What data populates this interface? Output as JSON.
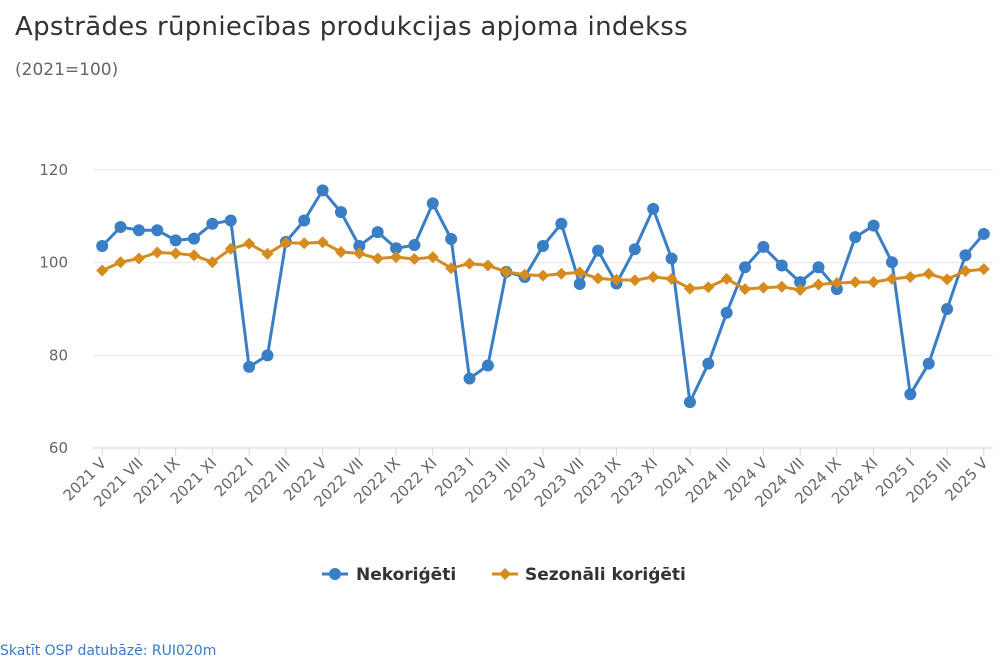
{
  "chart_data": {
    "type": "line",
    "title": "Apstrādes rūpniecības produkcijas apjoma indekss",
    "subtitle": "(2021=100)",
    "x": [
      "2021 V",
      "2021 VI",
      "2021 VII",
      "2021 VIII",
      "2021 IX",
      "2021 X",
      "2021 XI",
      "2021 XII",
      "2022 I",
      "2022 II",
      "2022 III",
      "2022 IV",
      "2022 V",
      "2022 VI",
      "2022 VII",
      "2022 VIII",
      "2022 IX",
      "2022 X",
      "2022 XI",
      "2022 XII",
      "2023 I",
      "2023 II",
      "2023 III",
      "2023 IV",
      "2023 V",
      "2023 VI",
      "2023 VII",
      "2023 VIII",
      "2023 IX",
      "2023 X",
      "2023 XI",
      "2023 XII",
      "2024 I",
      "2024 II",
      "2024 III",
      "2024 IV",
      "2024 V",
      "2024 VI",
      "2024 VII",
      "2024 VIII",
      "2024 IX",
      "2024 X",
      "2024 XI",
      "2024 XII",
      "2025 I",
      "2025 II",
      "2025 III",
      "2025 IV",
      "2025 V"
    ],
    "x_tick_labels": [
      "2021 V",
      "2021 VII",
      "2021 IX",
      "2021 XI",
      "2022 I",
      "2022 III",
      "2022 V",
      "2022 VII",
      "2022 IX",
      "2022 XI",
      "2023 I",
      "2023 III",
      "2023 V",
      "2023 VII",
      "2023 IX",
      "2023 XI",
      "2024 I",
      "2024 III",
      "2024 V",
      "2024 VII",
      "2024 IX",
      "2024 XI",
      "2025 I",
      "2025 III",
      "2025 V"
    ],
    "y_ticks": [
      60,
      80,
      100,
      120
    ],
    "ylim": [
      60,
      125
    ],
    "grid": true,
    "legend_position": "bottom",
    "series": [
      {
        "name": "Nekoriģēti",
        "color": "#3a7ec6",
        "marker": "circle",
        "values": [
          103.6,
          107.7,
          107.0,
          107.0,
          104.8,
          105.2,
          108.4,
          109.1,
          77.5,
          80.0,
          104.5,
          109.1,
          115.6,
          110.9,
          103.6,
          106.6,
          103.1,
          103.8,
          112.8,
          105.1,
          75.0,
          77.8,
          98.0,
          96.9,
          103.6,
          108.4,
          95.4,
          102.6,
          95.5,
          102.9,
          111.6,
          100.9,
          69.9,
          78.2,
          89.2,
          99.0,
          103.4,
          99.4,
          95.8,
          99.0,
          94.3,
          105.5,
          108.0,
          100.1,
          71.6,
          78.2,
          90.0,
          101.6,
          106.2
        ]
      },
      {
        "name": "Sezonāli koriģēti",
        "color": "#d68b1e",
        "marker": "diamond",
        "values": [
          98.3,
          100.1,
          100.9,
          102.2,
          102.0,
          101.6,
          100.1,
          103.0,
          104.1,
          101.9,
          104.3,
          104.2,
          104.4,
          102.3,
          102.0,
          100.9,
          101.2,
          100.8,
          101.2,
          98.8,
          99.8,
          99.4,
          98.0,
          97.4,
          97.2,
          97.6,
          97.9,
          96.6,
          96.3,
          96.2,
          96.9,
          96.5,
          94.4,
          94.7,
          96.5,
          94.3,
          94.6,
          94.8,
          94.1,
          95.3,
          95.6,
          95.8,
          95.8,
          96.5,
          96.9,
          97.6,
          96.4,
          98.2,
          98.6
        ]
      }
    ]
  },
  "source_link": "Skatīt OSP datubāzē: RUI020m"
}
